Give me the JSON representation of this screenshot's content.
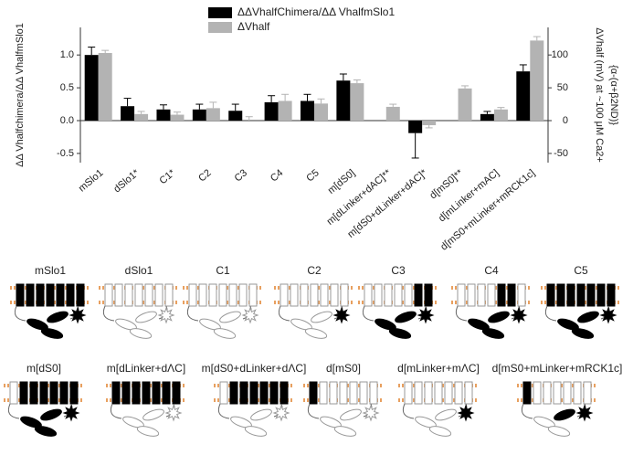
{
  "chart_data": {
    "type": "bar",
    "categories": [
      "mSlo1",
      "dSlo1*",
      "C1*",
      "C2",
      "C3",
      "C4",
      "C5",
      "m[dS0]",
      "m[dLinker+dAC]**",
      "m[dS0+dLinker+dAC]*",
      "d[mS0]**",
      "d[mLinker+mAC]",
      "d[mS0+mLinker+mRCK1c]"
    ],
    "series": [
      {
        "name": "ΔΔVhalfChimera/ΔΔ VhalfmSlo1",
        "color": "#000000",
        "values": [
          1.0,
          0.22,
          0.17,
          0.17,
          0.15,
          0.28,
          0.3,
          0.61,
          null,
          -0.19,
          null,
          0.1,
          0.75
        ],
        "errors": [
          0.12,
          0.12,
          0.07,
          0.08,
          0.1,
          0.1,
          0.1,
          0.1,
          null,
          0.38,
          null,
          0.04,
          0.1
        ]
      },
      {
        "name": "ΔVhalf",
        "color": "#b3b3b3",
        "axis": "y2",
        "values": [
          103,
          10,
          9,
          19,
          0,
          30,
          26,
          57,
          21,
          -7,
          49,
          17,
          122
        ],
        "errors": [
          4,
          4,
          4,
          9,
          6,
          10,
          7,
          5,
          4,
          4,
          4,
          3,
          6
        ]
      }
    ],
    "ylim": [
      -0.64,
      1.42
    ],
    "yticks": [
      -0.5,
      {
        "value": 0,
        "label": "0.0"
      },
      0.5,
      {
        "value": 1,
        "label": "1.0"
      }
    ],
    "y2lim": [
      -64,
      142
    ],
    "y2ticks": [
      -50,
      0,
      50,
      100
    ],
    "ylabel": "ΔΔ Vhalfchimera/ΔΔ VhalfmSlo1",
    "y2label": [
      "ΔVhalf  (mV) at ~100 μM Ca2+",
      "{α-(α+β2ND)}"
    ]
  },
  "diagrams": [
    "mSlo1",
    "dSlo1",
    "C1",
    "C2",
    "C3",
    "C4",
    "C5",
    "m[dS0]",
    "m[dLinker+dΛC]",
    "m[dS0+dLinker+dΛC]",
    "d[mS0]",
    "d[mLinker+mΛC]",
    "d[mS0+mLinker+mRCK1c]"
  ]
}
